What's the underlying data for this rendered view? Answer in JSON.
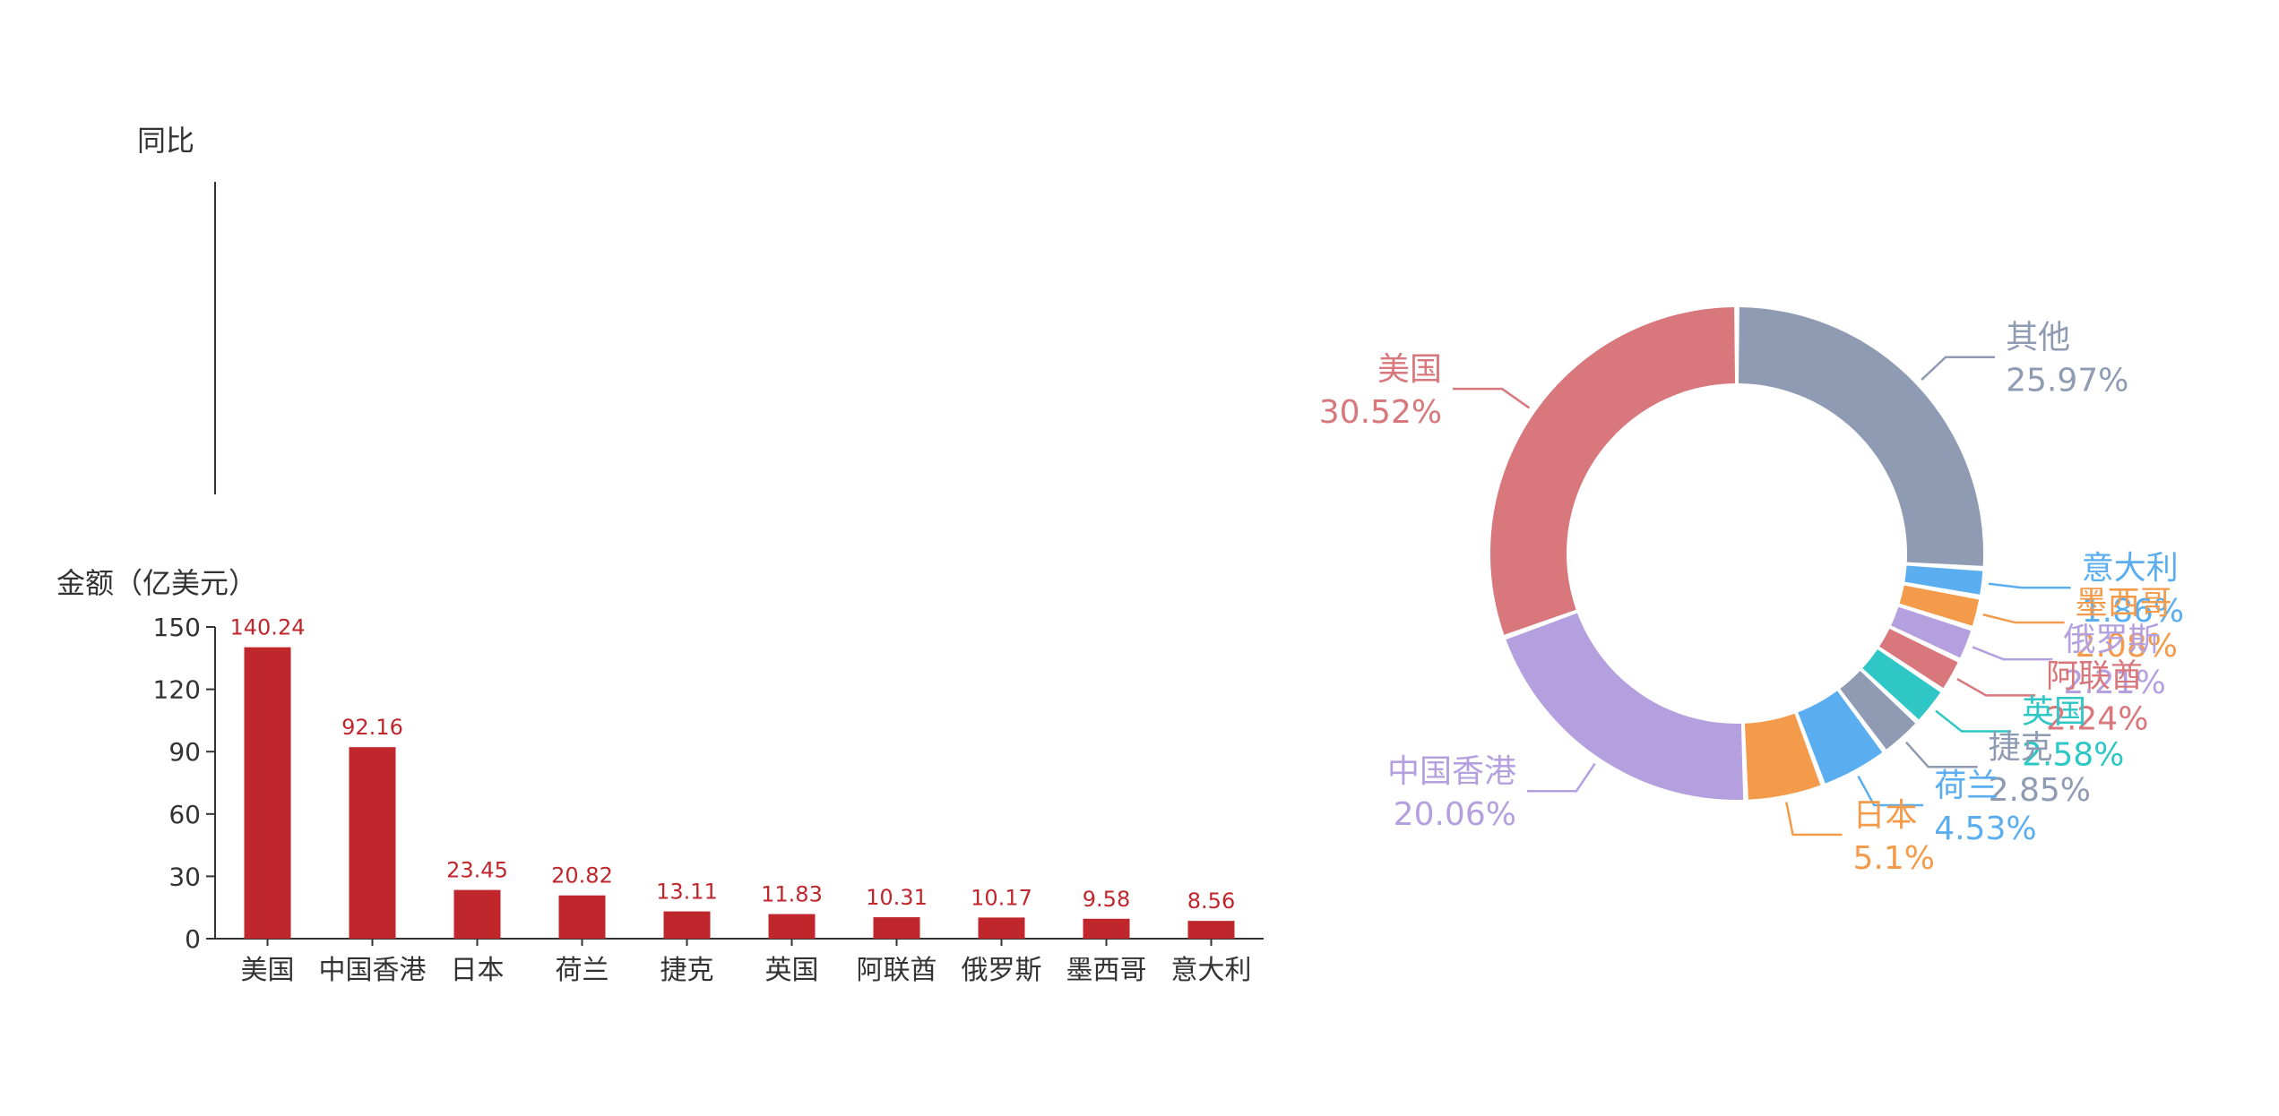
{
  "chart_data": [
    {
      "type": "line",
      "ylabel": "同比",
      "series": []
    },
    {
      "type": "bar",
      "ylabel": "金额（亿美元）",
      "ylim": [
        0,
        150
      ],
      "yticks": [
        "0",
        "30",
        "60",
        "90",
        "120",
        "150"
      ],
      "categories": [
        "美国",
        "中国香港",
        "日本",
        "荷兰",
        "捷克",
        "英国",
        "阿联酋",
        "俄罗斯",
        "墨西哥",
        "意大利"
      ],
      "values": [
        140.24,
        92.16,
        23.45,
        20.82,
        13.11,
        11.83,
        10.31,
        10.17,
        9.58,
        8.56
      ],
      "value_labels": [
        "140.24",
        "92.16",
        "23.45",
        "20.82",
        "13.11",
        "11.83",
        "10.31",
        "10.17",
        "9.58",
        "8.56"
      ],
      "bar_color": "#c0272d",
      "grid": false
    },
    {
      "type": "pie",
      "donut": true,
      "slices": [
        {
          "label": "其他",
          "percent": "25.97%",
          "value": 25.97,
          "color": "#8f9ab3"
        },
        {
          "label": "意大利",
          "percent": "1.86%",
          "value": 1.86,
          "color": "#5aaeef"
        },
        {
          "label": "墨西哥",
          "percent": "2.08%",
          "value": 2.08,
          "color": "#f39b4a"
        },
        {
          "label": "俄罗斯",
          "percent": "2.21%",
          "value": 2.21,
          "color": "#b49fdf"
        },
        {
          "label": "阿联酋",
          "percent": "2.24%",
          "value": 2.24,
          "color": "#d8777c"
        },
        {
          "label": "英国",
          "percent": "2.58%",
          "value": 2.58,
          "color": "#2fc6c6"
        },
        {
          "label": "捷克",
          "percent": "2.85%",
          "value": 2.85,
          "color": "#8f9ab3"
        },
        {
          "label": "荷兰",
          "percent": "4.53%",
          "value": 4.53,
          "color": "#5aaeef"
        },
        {
          "label": "日本",
          "percent": "5.1%",
          "value": 5.1,
          "color": "#f39b4a"
        },
        {
          "label": "中国香港",
          "percent": "20.06%",
          "value": 20.06,
          "color": "#b49fdf"
        },
        {
          "label": "美国",
          "percent": "30.52%",
          "value": 30.52,
          "color": "#d8777c"
        }
      ]
    }
  ]
}
